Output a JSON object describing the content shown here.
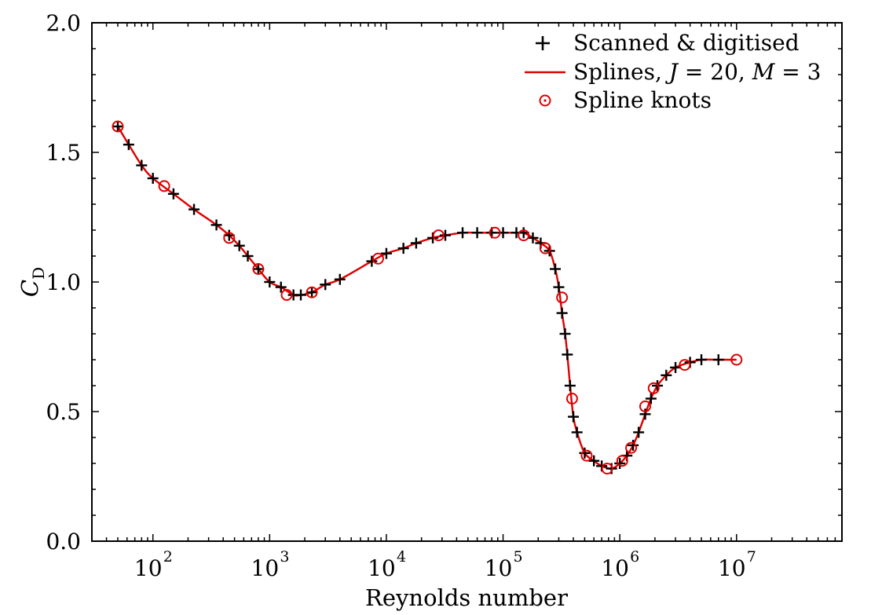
{
  "chart_data": {
    "type": "scatter",
    "xscale": "log",
    "xlim": [
      30,
      80000000
    ],
    "ylim": [
      0.0,
      2.0
    ],
    "xlabel": "Reynolds number",
    "ylabel": {
      "main": "C",
      "sub": "D"
    },
    "grid": false,
    "legend_position": "top-right",
    "x_ticks": [
      {
        "value": 100,
        "base": "10",
        "exp": "2"
      },
      {
        "value": 1000,
        "base": "10",
        "exp": "3"
      },
      {
        "value": 10000,
        "base": "10",
        "exp": "4"
      },
      {
        "value": 100000,
        "base": "10",
        "exp": "5"
      },
      {
        "value": 1000000,
        "base": "10",
        "exp": "6"
      },
      {
        "value": 10000000,
        "base": "10",
        "exp": "7"
      }
    ],
    "y_ticks": [
      {
        "value": 0.0,
        "label": "0.0"
      },
      {
        "value": 0.5,
        "label": "0.5"
      },
      {
        "value": 1.0,
        "label": "1.0"
      },
      {
        "value": 1.5,
        "label": "1.5"
      },
      {
        "value": 2.0,
        "label": "2.0"
      }
    ],
    "series": [
      {
        "name": "Scanned & digitised",
        "kind": "marker-plus",
        "color": "#000000",
        "x": [
          50,
          62,
          80,
          100,
          150,
          225,
          350,
          450,
          550,
          650,
          800,
          1000,
          1250,
          1600,
          1850,
          2300,
          3000,
          4000,
          7500,
          10000,
          14000,
          18000,
          25000,
          32000,
          45000,
          60000,
          80000,
          100000,
          130000,
          150000,
          180000,
          210000,
          250000,
          280000,
          300000,
          320000,
          340000,
          355000,
          375000,
          400000,
          430000,
          500000,
          600000,
          700000,
          850000,
          1000000,
          1150000,
          1300000,
          1450000,
          1650000,
          1850000,
          2100000,
          2500000,
          3000000,
          4000000,
          5000000,
          7000000
        ],
        "y": [
          1.6,
          1.53,
          1.45,
          1.4,
          1.34,
          1.28,
          1.22,
          1.18,
          1.14,
          1.1,
          1.05,
          1.0,
          0.98,
          0.95,
          0.95,
          0.96,
          0.99,
          1.01,
          1.08,
          1.11,
          1.13,
          1.15,
          1.17,
          1.18,
          1.19,
          1.19,
          1.19,
          1.19,
          1.19,
          1.19,
          1.17,
          1.15,
          1.12,
          1.05,
          0.98,
          0.88,
          0.8,
          0.72,
          0.6,
          0.48,
          0.42,
          0.34,
          0.31,
          0.29,
          0.28,
          0.3,
          0.33,
          0.37,
          0.42,
          0.49,
          0.55,
          0.6,
          0.64,
          0.67,
          0.69,
          0.7,
          0.7
        ]
      },
      {
        "name": "Splines, J = 20, M = 3",
        "legend_label": {
          "prefix": "Splines, ",
          "j_var": "J",
          "j_val": " = 20, ",
          "m_var": "M",
          "m_val": " = 3"
        },
        "kind": "line",
        "color": "#dd0000"
      },
      {
        "name": "Spline knots",
        "kind": "marker-ring",
        "color": "#dd0000",
        "x": [
          50,
          125,
          450,
          800,
          1400,
          2300,
          8500,
          28000,
          85000,
          150000,
          230000,
          320000,
          390000,
          520000,
          780000,
          1050000,
          1250000,
          1650000,
          1950000,
          3600000,
          10000000
        ],
        "y": [
          1.6,
          1.37,
          1.17,
          1.05,
          0.95,
          0.96,
          1.09,
          1.18,
          1.19,
          1.18,
          1.13,
          0.94,
          0.55,
          0.33,
          0.28,
          0.31,
          0.36,
          0.52,
          0.59,
          0.68,
          0.7
        ]
      }
    ]
  }
}
